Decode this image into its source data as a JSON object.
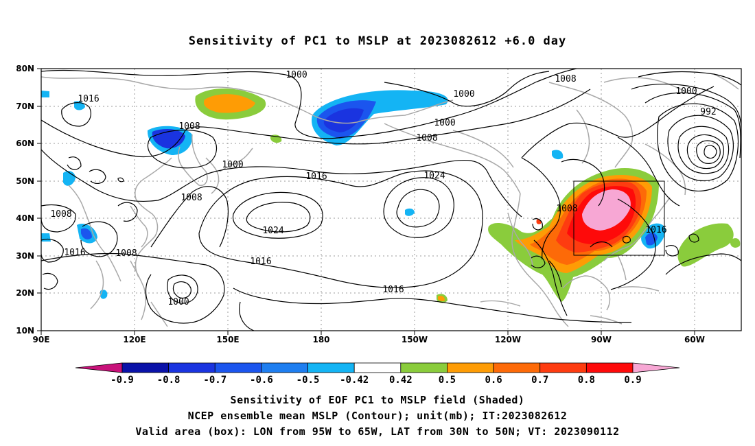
{
  "title": "Sensitivity of PC1 to MSLP at 2023082612 +6.0 day",
  "lat_labels": [
    "80N",
    "70N",
    "60N",
    "50N",
    "40N",
    "30N",
    "20N",
    "10N"
  ],
  "lon_labels": [
    "90E",
    "120E",
    "150E",
    "180",
    "150W",
    "120W",
    "90W",
    "60W"
  ],
  "contour_labels": [
    {
      "text": "1000"
    },
    {
      "text": "1016"
    },
    {
      "text": "1008"
    },
    {
      "text": "1000"
    },
    {
      "text": "1000"
    },
    {
      "text": "1008"
    },
    {
      "text": "1000"
    },
    {
      "text": "992"
    },
    {
      "text": "1000"
    },
    {
      "text": "1008"
    },
    {
      "text": "1016"
    },
    {
      "text": "1024"
    },
    {
      "text": "1008"
    },
    {
      "text": "1008"
    },
    {
      "text": "1024"
    },
    {
      "text": "1016"
    },
    {
      "text": "1008"
    },
    {
      "text": "1016"
    },
    {
      "text": "1016"
    },
    {
      "text": "1008"
    },
    {
      "text": "1016"
    },
    {
      "text": "1000"
    }
  ],
  "colorbar": {
    "labels": [
      "-0.9",
      "-0.8",
      "-0.7",
      "-0.6",
      "-0.5",
      "-0.42",
      "0.42",
      "0.5",
      "0.6",
      "0.7",
      "0.8",
      "0.9"
    ],
    "colors": {
      "low_arrow": "#c8127a",
      "bins": [
        "#0a12a8",
        "#1a34e0",
        "#1b55ee",
        "#1e7ef0",
        "#14b4f4",
        "#ffffff",
        "#8acc3c",
        "#fe9c05",
        "#fd6a08",
        "#fe3c10",
        "#fe0a0a"
      ],
      "high_arrow": "#f7a7d4"
    }
  },
  "captions": {
    "line1": "Sensitivity of EOF PC1 to MSLP field (Shaded)",
    "line2": "NCEP ensemble mean MSLP (Contour); unit(mb); IT:2023082612",
    "line3": "Valid area (box): LON from 95W to 65W, LAT from 30N to 50N; VT: 2023090112"
  }
}
